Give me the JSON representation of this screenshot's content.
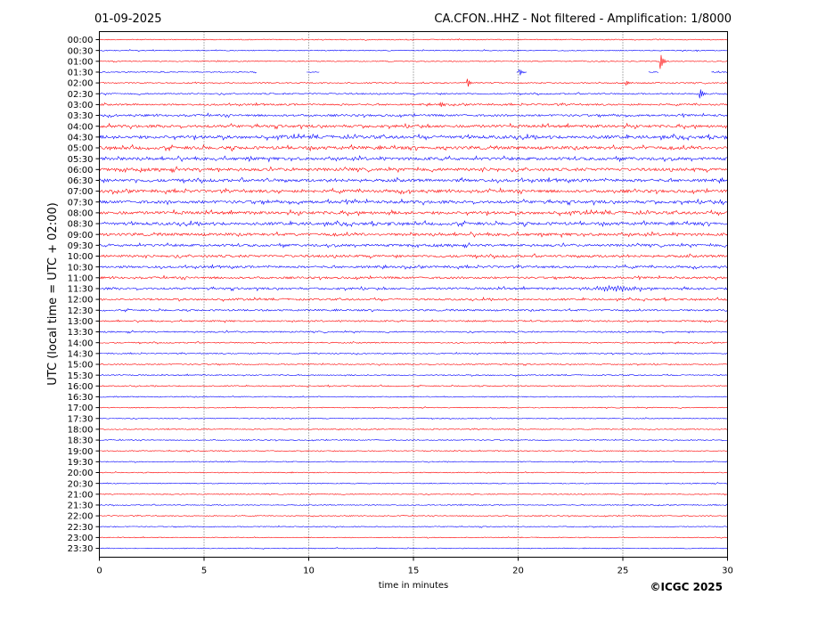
{
  "header": {
    "date": "01-09-2025",
    "title": "CA.CFON..HHZ - Not filtered - Amplification: 1/8000"
  },
  "copyright": "©ICGC 2025",
  "chart_data": {
    "type": "line",
    "xlabel": "time in minutes",
    "ylabel": "UTC (local time = UTC + 02:00)",
    "xlim": [
      0,
      30
    ],
    "x_ticks": [
      0,
      5,
      10,
      15,
      20,
      25,
      30
    ],
    "grid": "vertical dotted lines every 5 minutes",
    "colors": {
      "even_rows": "#ff0000",
      "odd_rows": "#0000ff"
    },
    "rows": [
      "00:00",
      "00:30",
      "01:00",
      "01:30",
      "02:00",
      "02:30",
      "03:00",
      "03:30",
      "04:00",
      "04:30",
      "05:00",
      "05:30",
      "06:00",
      "06:30",
      "07:00",
      "07:30",
      "08:00",
      "08:30",
      "09:00",
      "09:30",
      "10:00",
      "10:30",
      "11:00",
      "11:30",
      "12:00",
      "12:30",
      "13:00",
      "13:30",
      "14:00",
      "14:30",
      "15:00",
      "15:30",
      "16:00",
      "16:30",
      "17:00",
      "17:30",
      "18:00",
      "18:30",
      "19:00",
      "19:30",
      "20:00",
      "20:30",
      "21:00",
      "21:30",
      "22:00",
      "22:30",
      "23:00",
      "23:30"
    ],
    "noise_levels": [
      1.0,
      1.0,
      1.0,
      1.0,
      1.2,
      1.5,
      1.8,
      2.2,
      2.8,
      3.2,
      3.2,
      3.0,
      3.0,
      3.0,
      3.0,
      3.0,
      3.0,
      3.0,
      2.8,
      2.5,
      2.5,
      2.3,
      2.2,
      2.2,
      2.0,
      1.8,
      1.6,
      1.5,
      1.3,
      1.2,
      1.2,
      1.2,
      1.2,
      1.1,
      1.0,
      1.0,
      1.0,
      1.0,
      1.0,
      1.0,
      1.0,
      1.0,
      1.0,
      1.0,
      1.0,
      1.0,
      0.9,
      0.9
    ],
    "gaps": [
      {
        "row": "01:30",
        "from_min": 7.5,
        "to_min": 9.9
      },
      {
        "row": "01:30",
        "from_min": 10.5,
        "to_min": 19.9
      },
      {
        "row": "01:30",
        "from_min": 20.4,
        "to_min": 26.2
      },
      {
        "row": "01:30",
        "from_min": 26.7,
        "to_min": 29.2
      }
    ],
    "events": [
      {
        "row": "01:00",
        "minute": 26.8,
        "amplitude": 9
      },
      {
        "row": "01:30",
        "minute": 20.1,
        "amplitude": 3
      },
      {
        "row": "02:00",
        "minute": 17.6,
        "amplitude": 4
      },
      {
        "row": "02:00",
        "minute": 25.2,
        "amplitude": 2
      },
      {
        "row": "02:30",
        "minute": 28.7,
        "amplitude": 5
      },
      {
        "row": "03:00",
        "minute": 16.3,
        "amplitude": 3
      },
      {
        "row": "11:30",
        "minute": 22.8,
        "amplitude": 2.5,
        "duration": 3.5
      }
    ]
  }
}
